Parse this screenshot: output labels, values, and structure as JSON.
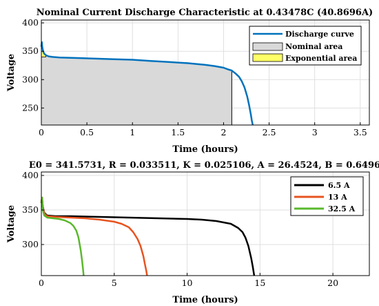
{
  "chart_data": [
    {
      "type": "area",
      "title": "Nominal Current Discharge Characteristic at 0.43478C (40.8696A)",
      "xlabel": "Time (hours)",
      "ylabel": "Voltage",
      "xlim": [
        0,
        3.6
      ],
      "ylim": [
        220,
        405
      ],
      "xticks": [
        0,
        0.5,
        1,
        1.5,
        2,
        2.5,
        3,
        3.5
      ],
      "xtick_labels": [
        "0",
        "0.5",
        "1",
        "1.5",
        "2",
        "2.5",
        "3",
        "3.5"
      ],
      "yticks": [
        250,
        300,
        350,
        400
      ],
      "ytick_labels": [
        "250",
        "300",
        "350",
        "400"
      ],
      "grid": true,
      "legend_position": "top-right",
      "series": [
        {
          "name": "Discharge curve",
          "color": "#0072bd",
          "x": [
            0,
            0.005,
            0.01,
            0.02,
            0.03,
            0.05,
            0.08,
            0.12,
            0.2,
            0.4,
            0.6,
            0.8,
            1.0,
            1.2,
            1.4,
            1.6,
            1.8,
            1.9,
            2.0,
            2.05,
            2.09,
            2.13,
            2.17,
            2.2,
            2.23,
            2.26,
            2.28,
            2.3,
            2.31,
            2.32
          ],
          "y": [
            358,
            366,
            358,
            350,
            346,
            343,
            341,
            340,
            339,
            338,
            337,
            336,
            335,
            333,
            331,
            329,
            326,
            324,
            321,
            318,
            316,
            311,
            305,
            297,
            286,
            270,
            255,
            238,
            228,
            220
          ]
        }
      ],
      "areas": [
        {
          "name": "Nominal area",
          "color": "#d9d9d9",
          "x_end": 2.09,
          "y_level": 316
        },
        {
          "name": "Exponential area",
          "color": "#ffff66",
          "x_end": 0.05,
          "y_level": 340
        }
      ],
      "annotation": "E0 = 341.5731, R = 0.033511, K = 0.025106, A = 26.4524, B = 0.6496"
    },
    {
      "type": "line",
      "title": "",
      "xlabel": "Time (hours)",
      "ylabel": "Voltage",
      "xlim": [
        0,
        22.5
      ],
      "ylim": [
        255,
        405
      ],
      "xticks": [
        0,
        5,
        10,
        15,
        20
      ],
      "xtick_labels": [
        "0",
        "5",
        "10",
        "15",
        "20"
      ],
      "yticks": [
        300,
        350,
        400
      ],
      "ytick_labels": [
        "300",
        "350",
        "400"
      ],
      "grid": true,
      "legend_position": "top-right",
      "series": [
        {
          "name": "6.5 A",
          "color": "#000000",
          "x": [
            0,
            0.05,
            0.1,
            0.2,
            0.4,
            1,
            2,
            4,
            6,
            8,
            10,
            11,
            12,
            12.5,
            13,
            13.5,
            13.8,
            14.0,
            14.2,
            14.4,
            14.5,
            14.6
          ],
          "y": [
            360,
            366,
            355,
            346,
            342,
            341,
            341,
            340,
            339,
            338,
            337,
            336,
            334,
            332,
            330,
            324,
            318,
            310,
            298,
            280,
            268,
            255
          ]
        },
        {
          "name": "13 A",
          "color": "#e8531f",
          "x": [
            0,
            0.05,
            0.1,
            0.2,
            0.4,
            1,
            2,
            3,
            4,
            5,
            5.5,
            6,
            6.3,
            6.6,
            6.8,
            7.0,
            7.1,
            7.2,
            7.25
          ],
          "y": [
            362,
            368,
            354,
            345,
            341,
            340,
            339,
            338,
            336,
            333,
            330,
            325,
            318,
            308,
            298,
            283,
            272,
            262,
            255
          ]
        },
        {
          "name": "32.5 A",
          "color": "#5ab82c",
          "x": [
            0,
            0.05,
            0.1,
            0.2,
            0.4,
            0.8,
            1.2,
            1.6,
            2.0,
            2.2,
            2.4,
            2.55,
            2.7,
            2.8,
            2.85,
            2.9
          ],
          "y": [
            360,
            368,
            350,
            342,
            339,
            338,
            337,
            335,
            331,
            327,
            320,
            310,
            292,
            276,
            266,
            255
          ]
        }
      ]
    }
  ]
}
